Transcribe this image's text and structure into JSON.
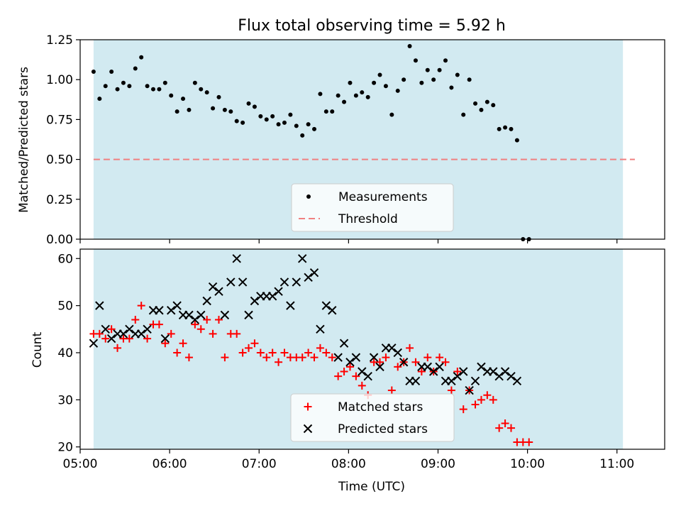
{
  "chart_data": [
    {
      "type": "scatter",
      "title": "Flux total observing time = 5.92 h",
      "xlabel": "",
      "ylabel": "Matched/Predicted stars",
      "xlim": [
        "05:00",
        "11:32"
      ],
      "ylim": [
        0,
        1.25
      ],
      "yticks": [
        0.0,
        0.25,
        0.5,
        0.75,
        1.0,
        1.25
      ],
      "ytick_labels": [
        "0.00",
        "0.25",
        "0.50",
        "0.75",
        "1.00",
        "1.25"
      ],
      "shaded_region": {
        "start": "05:09",
        "end": "11:04",
        "color": "#add8e6"
      },
      "legend_position": "lower-center",
      "threshold": {
        "name": "Threshold",
        "value": 0.5,
        "x_start": "05:09",
        "x_end": "11:12",
        "color": "#f08080"
      },
      "series": [
        {
          "name": "Measurements",
          "color": "#000000",
          "points": [
            [
              "05:09",
              1.05
            ],
            [
              "05:13",
              0.88
            ],
            [
              "05:17",
              0.96
            ],
            [
              "05:21",
              1.05
            ],
            [
              "05:25",
              0.94
            ],
            [
              "05:29",
              0.98
            ],
            [
              "05:33",
              0.96
            ],
            [
              "05:37",
              1.07
            ],
            [
              "05:41",
              1.14
            ],
            [
              "05:45",
              0.96
            ],
            [
              "05:49",
              0.94
            ],
            [
              "05:53",
              0.94
            ],
            [
              "05:57",
              0.98
            ],
            [
              "06:01",
              0.9
            ],
            [
              "06:05",
              0.8
            ],
            [
              "06:09",
              0.88
            ],
            [
              "06:13",
              0.81
            ],
            [
              "06:17",
              0.98
            ],
            [
              "06:21",
              0.94
            ],
            [
              "06:25",
              0.92
            ],
            [
              "06:29",
              0.82
            ],
            [
              "06:33",
              0.89
            ],
            [
              "06:37",
              0.81
            ],
            [
              "06:41",
              0.8
            ],
            [
              "06:45",
              0.74
            ],
            [
              "06:49",
              0.73
            ],
            [
              "06:53",
              0.85
            ],
            [
              "06:57",
              0.83
            ],
            [
              "07:01",
              0.77
            ],
            [
              "07:05",
              0.75
            ],
            [
              "07:09",
              0.77
            ],
            [
              "07:13",
              0.72
            ],
            [
              "07:17",
              0.73
            ],
            [
              "07:21",
              0.78
            ],
            [
              "07:25",
              0.71
            ],
            [
              "07:29",
              0.65
            ],
            [
              "07:33",
              0.72
            ],
            [
              "07:37",
              0.69
            ],
            [
              "07:41",
              0.91
            ],
            [
              "07:45",
              0.8
            ],
            [
              "07:49",
              0.8
            ],
            [
              "07:53",
              0.9
            ],
            [
              "07:57",
              0.86
            ],
            [
              "08:01",
              0.98
            ],
            [
              "08:05",
              0.9
            ],
            [
              "08:09",
              0.92
            ],
            [
              "08:13",
              0.89
            ],
            [
              "08:17",
              0.98
            ],
            [
              "08:21",
              1.03
            ],
            [
              "08:25",
              0.96
            ],
            [
              "08:29",
              0.78
            ],
            [
              "08:33",
              0.93
            ],
            [
              "08:37",
              1.0
            ],
            [
              "08:41",
              1.21
            ],
            [
              "08:45",
              1.12
            ],
            [
              "08:49",
              0.98
            ],
            [
              "08:53",
              1.06
            ],
            [
              "08:57",
              1.0
            ],
            [
              "09:01",
              1.06
            ],
            [
              "09:05",
              1.12
            ],
            [
              "09:09",
              0.95
            ],
            [
              "09:13",
              1.03
            ],
            [
              "09:17",
              0.78
            ],
            [
              "09:21",
              1.0
            ],
            [
              "09:25",
              0.85
            ],
            [
              "09:29",
              0.81
            ],
            [
              "09:33",
              0.86
            ],
            [
              "09:37",
              0.84
            ],
            [
              "09:41",
              0.69
            ],
            [
              "09:45",
              0.7
            ],
            [
              "09:49",
              0.69
            ],
            [
              "09:53",
              0.62
            ],
            [
              "09:57",
              0.0
            ],
            [
              "10:01",
              0.0
            ]
          ]
        }
      ]
    },
    {
      "type": "scatter",
      "title": "",
      "xlabel": "Time (UTC)",
      "ylabel": "Count",
      "xlim": [
        "05:00",
        "11:32"
      ],
      "ylim": [
        19.5,
        62
      ],
      "yticks": [
        20,
        30,
        40,
        50,
        60
      ],
      "ytick_labels": [
        "20",
        "30",
        "40",
        "50",
        "60"
      ],
      "xticks": [
        "05:00",
        "06:00",
        "07:00",
        "08:00",
        "09:00",
        "10:00",
        "11:00"
      ],
      "xtick_labels": [
        "05:00",
        "06:00",
        "07:00",
        "08:00",
        "09:00",
        "10:00",
        "11:00"
      ],
      "shaded_region": {
        "start": "05:09",
        "end": "11:04",
        "color": "#add8e6"
      },
      "legend_position": "lower-center",
      "series": [
        {
          "name": "Matched stars",
          "marker": "plus",
          "color": "#ff0000",
          "points": [
            [
              "05:09",
              44
            ],
            [
              "05:13",
              44
            ],
            [
              "05:17",
              43
            ],
            [
              "05:21",
              45
            ],
            [
              "05:25",
              41
            ],
            [
              "05:29",
              43
            ],
            [
              "05:33",
              43
            ],
            [
              "05:37",
              47
            ],
            [
              "05:41",
              50
            ],
            [
              "05:45",
              43
            ],
            [
              "05:49",
              46
            ],
            [
              "05:53",
              46
            ],
            [
              "05:57",
              42
            ],
            [
              "06:01",
              44
            ],
            [
              "06:05",
              40
            ],
            [
              "06:09",
              42
            ],
            [
              "06:13",
              39
            ],
            [
              "06:17",
              46
            ],
            [
              "06:21",
              45
            ],
            [
              "06:25",
              47
            ],
            [
              "06:29",
              44
            ],
            [
              "06:33",
              47
            ],
            [
              "06:37",
              39
            ],
            [
              "06:41",
              44
            ],
            [
              "06:45",
              44
            ],
            [
              "06:49",
              40
            ],
            [
              "06:53",
              41
            ],
            [
              "06:57",
              42
            ],
            [
              "07:01",
              40
            ],
            [
              "07:05",
              39
            ],
            [
              "07:09",
              40
            ],
            [
              "07:13",
              38
            ],
            [
              "07:17",
              40
            ],
            [
              "07:21",
              39
            ],
            [
              "07:25",
              39
            ],
            [
              "07:29",
              39
            ],
            [
              "07:33",
              40
            ],
            [
              "07:37",
              39
            ],
            [
              "07:41",
              41
            ],
            [
              "07:45",
              40
            ],
            [
              "07:49",
              39
            ],
            [
              "07:53",
              35
            ],
            [
              "07:57",
              36
            ],
            [
              "08:01",
              37
            ],
            [
              "08:05",
              35
            ],
            [
              "08:09",
              33
            ],
            [
              "08:13",
              31
            ],
            [
              "08:17",
              38
            ],
            [
              "08:21",
              38
            ],
            [
              "08:25",
              39
            ],
            [
              "08:29",
              32
            ],
            [
              "08:33",
              37
            ],
            [
              "08:37",
              38
            ],
            [
              "08:41",
              41
            ],
            [
              "08:45",
              38
            ],
            [
              "08:49",
              36
            ],
            [
              "08:53",
              39
            ],
            [
              "08:57",
              36
            ],
            [
              "09:01",
              39
            ],
            [
              "09:05",
              38
            ],
            [
              "09:09",
              32
            ],
            [
              "09:13",
              36
            ],
            [
              "09:17",
              28
            ],
            [
              "09:21",
              32
            ],
            [
              "09:25",
              29
            ],
            [
              "09:29",
              30
            ],
            [
              "09:33",
              31
            ],
            [
              "09:37",
              30
            ],
            [
              "09:41",
              24
            ],
            [
              "09:45",
              25
            ],
            [
              "09:49",
              24
            ],
            [
              "09:53",
              21
            ],
            [
              "09:57",
              21
            ],
            [
              "10:01",
              21
            ]
          ]
        },
        {
          "name": "Predicted stars",
          "marker": "cross",
          "color": "#000000",
          "points": [
            [
              "05:09",
              42
            ],
            [
              "05:13",
              50
            ],
            [
              "05:17",
              45
            ],
            [
              "05:21",
              43
            ],
            [
              "05:25",
              44
            ],
            [
              "05:29",
              44
            ],
            [
              "05:33",
              45
            ],
            [
              "05:37",
              44
            ],
            [
              "05:41",
              44
            ],
            [
              "05:45",
              45
            ],
            [
              "05:49",
              49
            ],
            [
              "05:53",
              49
            ],
            [
              "05:57",
              43
            ],
            [
              "06:01",
              49
            ],
            [
              "06:05",
              50
            ],
            [
              "06:09",
              48
            ],
            [
              "06:13",
              48
            ],
            [
              "06:17",
              47
            ],
            [
              "06:21",
              48
            ],
            [
              "06:25",
              51
            ],
            [
              "06:29",
              54
            ],
            [
              "06:33",
              53
            ],
            [
              "06:37",
              48
            ],
            [
              "06:41",
              55
            ],
            [
              "06:45",
              60
            ],
            [
              "06:49",
              55
            ],
            [
              "06:53",
              48
            ],
            [
              "06:57",
              51
            ],
            [
              "07:01",
              52
            ],
            [
              "07:05",
              52
            ],
            [
              "07:09",
              52
            ],
            [
              "07:13",
              53
            ],
            [
              "07:17",
              55
            ],
            [
              "07:21",
              50
            ],
            [
              "07:25",
              55
            ],
            [
              "07:29",
              60
            ],
            [
              "07:33",
              56
            ],
            [
              "07:37",
              57
            ],
            [
              "07:41",
              45
            ],
            [
              "07:45",
              50
            ],
            [
              "07:49",
              49
            ],
            [
              "07:53",
              39
            ],
            [
              "07:57",
              42
            ],
            [
              "08:01",
              38
            ],
            [
              "08:05",
              39
            ],
            [
              "08:09",
              36
            ],
            [
              "08:13",
              35
            ],
            [
              "08:17",
              39
            ],
            [
              "08:21",
              37
            ],
            [
              "08:25",
              41
            ],
            [
              "08:29",
              41
            ],
            [
              "08:33",
              40
            ],
            [
              "08:37",
              38
            ],
            [
              "08:41",
              34
            ],
            [
              "08:45",
              34
            ],
            [
              "08:49",
              37
            ],
            [
              "08:53",
              37
            ],
            [
              "08:57",
              36
            ],
            [
              "09:01",
              37
            ],
            [
              "09:05",
              34
            ],
            [
              "09:09",
              34
            ],
            [
              "09:13",
              35
            ],
            [
              "09:17",
              36
            ],
            [
              "09:21",
              32
            ],
            [
              "09:25",
              34
            ],
            [
              "09:29",
              37
            ],
            [
              "09:33",
              36
            ],
            [
              "09:37",
              36
            ],
            [
              "09:41",
              35
            ],
            [
              "09:45",
              36
            ],
            [
              "09:49",
              35
            ],
            [
              "09:53",
              34
            ]
          ]
        }
      ]
    }
  ]
}
